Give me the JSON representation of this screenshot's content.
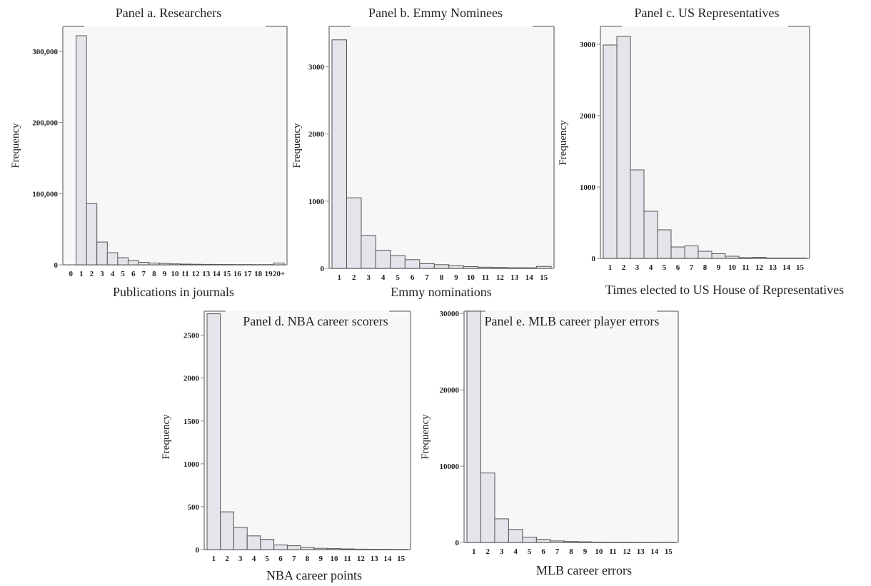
{
  "colors": {
    "bar_fill": "#e4e5ea",
    "bar_stroke": "#555555",
    "plot_bg": "#f7f7f7",
    "frame": "#888888",
    "text": "#222222"
  },
  "chart_data": [
    {
      "type": "bar",
      "title": "Panel a. Researchers",
      "xlabel": "Publications in journals",
      "ylabel": "Frequency",
      "categories": [
        "0",
        "1",
        "2",
        "3",
        "4",
        "5",
        "6",
        "7",
        "8",
        "9",
        "10",
        "11",
        "12",
        "13",
        "14",
        "15",
        "16",
        "17",
        "18",
        "19",
        "20+"
      ],
      "values": [
        0,
        322000,
        86000,
        32000,
        17000,
        10000,
        6000,
        3500,
        2500,
        1800,
        1300,
        1000,
        800,
        600,
        500,
        400,
        350,
        300,
        250,
        200,
        2500
      ],
      "ylim": [
        0,
        335000
      ],
      "yticks": [
        0,
        100000,
        200000,
        300000
      ],
      "yticklabels": [
        "0",
        "100,000",
        "200,000",
        "300,000"
      ],
      "grid": false
    },
    {
      "type": "bar",
      "title": "Panel b. Emmy Nominees",
      "xlabel": "Emmy nominations",
      "ylabel": "Frequency",
      "categories": [
        "1",
        "2",
        "3",
        "4",
        "5",
        "6",
        "7",
        "8",
        "9",
        "10",
        "11",
        "12",
        "13",
        "14",
        "15"
      ],
      "values": [
        3400,
        1050,
        490,
        270,
        190,
        130,
        70,
        55,
        40,
        28,
        18,
        14,
        10,
        8,
        30
      ],
      "ylim": [
        0,
        3600
      ],
      "yticks": [
        0,
        1000,
        2000,
        3000
      ],
      "yticklabels": [
        "0",
        "1000",
        "2000",
        "3000"
      ],
      "grid": false
    },
    {
      "type": "bar",
      "title": "Panel c. US Representatives",
      "xlabel": "Times elected to US House of Representatives",
      "ylabel": "Frequency",
      "categories": [
        "1",
        "2",
        "3",
        "4",
        "5",
        "6",
        "7",
        "8",
        "9",
        "10",
        "11",
        "12",
        "13",
        "14",
        "15"
      ],
      "values": [
        2990,
        3110,
        1240,
        660,
        400,
        160,
        175,
        100,
        65,
        30,
        10,
        15,
        5,
        5,
        5
      ],
      "ylim": [
        0,
        3250
      ],
      "yticks": [
        0,
        1000,
        2000,
        3000
      ],
      "yticklabels": [
        "0",
        "1000",
        "2000",
        "3000"
      ],
      "grid": false
    },
    {
      "type": "bar",
      "title": "Panel d. NBA career scorers",
      "xlabel": "NBA career points",
      "ylabel": "Frequency",
      "categories": [
        "1",
        "2",
        "3",
        "4",
        "5",
        "6",
        "7",
        "8",
        "9",
        "10",
        "11",
        "12",
        "13",
        "14",
        "15"
      ],
      "values": [
        2750,
        440,
        260,
        160,
        120,
        55,
        45,
        25,
        15,
        12,
        8,
        5,
        4,
        3,
        2
      ],
      "ylim": [
        0,
        2780
      ],
      "yticks": [
        0,
        500,
        1000,
        1500,
        2000,
        2500
      ],
      "yticklabels": [
        "0",
        "500",
        "1000",
        "1500",
        "2000",
        "2500"
      ],
      "grid": false
    },
    {
      "type": "bar",
      "title": "Panel e. MLB career player errors",
      "xlabel": "MLB career errors",
      "ylabel": "Frequency",
      "categories": [
        "1",
        "2",
        "3",
        "4",
        "5",
        "6",
        "7",
        "8",
        "9",
        "10",
        "11",
        "12",
        "13",
        "14",
        "15"
      ],
      "values": [
        30300,
        9100,
        3100,
        1700,
        700,
        400,
        200,
        120,
        80,
        50,
        40,
        30,
        20,
        15,
        10
      ],
      "ylim": [
        0,
        30300
      ],
      "yticks": [
        0,
        10000,
        20000,
        30000
      ],
      "yticklabels": [
        "0",
        "10000",
        "20000",
        "30000"
      ],
      "grid": false
    }
  ]
}
